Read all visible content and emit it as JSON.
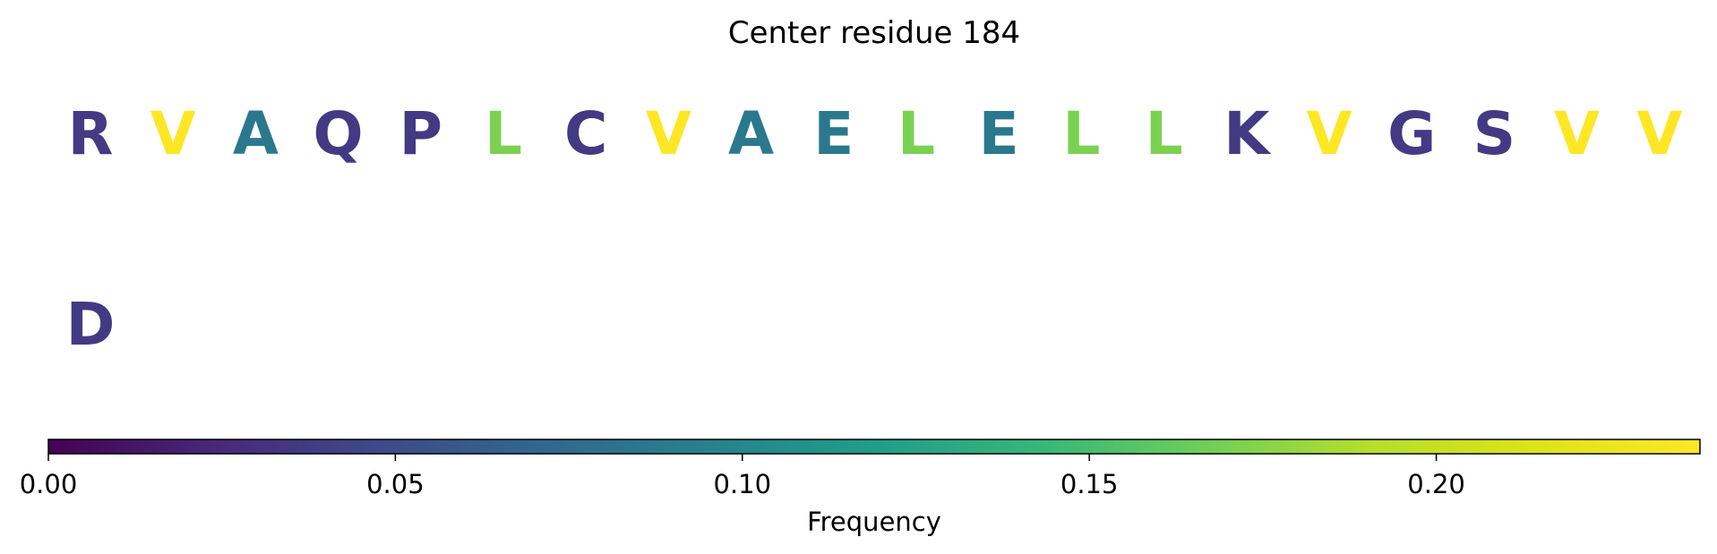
{
  "chart_data": {
    "type": "heatmap",
    "title": "Center residue 184",
    "rows": [
      {
        "letters": [
          "R",
          "V",
          "A",
          "Q",
          "P",
          "L",
          "C",
          "V",
          "A",
          "E",
          "L",
          "E",
          "L",
          "L",
          "K",
          "V",
          "G",
          "S",
          "V",
          "V"
        ],
        "colors": [
          "#443a83",
          "#fde725",
          "#2a788e",
          "#443a83",
          "#443a83",
          "#7ad151",
          "#443a83",
          "#fde725",
          "#2a788e",
          "#2a788e",
          "#7ad151",
          "#2a788e",
          "#7ad151",
          "#7ad151",
          "#443a83",
          "#fde725",
          "#443a83",
          "#443a83",
          "#fde725",
          "#fde725"
        ]
      },
      {
        "letters": [
          "D"
        ],
        "colors": [
          "#443a83"
        ]
      }
    ],
    "colorbar": {
      "colormap": "viridis",
      "min": 0.0,
      "max": 0.238,
      "ticks": [
        0.0,
        0.05,
        0.1,
        0.15,
        0.2
      ],
      "tick_labels": [
        "0.00",
        "0.05",
        "0.10",
        "0.15",
        "0.20"
      ],
      "label": "Frequency",
      "orientation": "horizontal"
    }
  }
}
